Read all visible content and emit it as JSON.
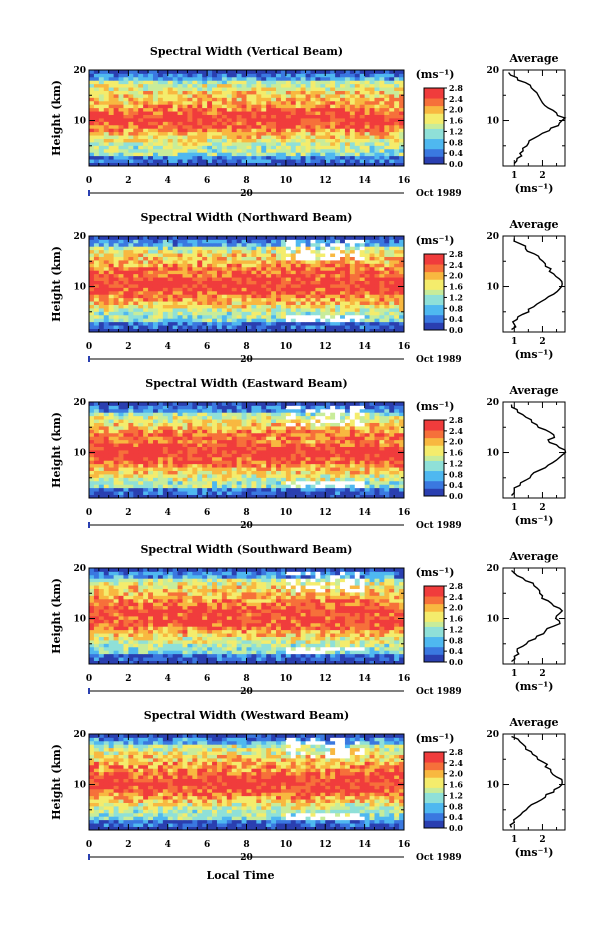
{
  "figure": {
    "xlabel": "Local Time",
    "date_label": "Oct 1989",
    "day_label": "20",
    "colorbar_unit": "(ms⁻¹)",
    "avg_unit": "(ms⁻¹)",
    "avg_title": "Average",
    "ylabel": "Height (km)"
  },
  "chart_data": [
    {
      "type": "heatmap",
      "title": "Spectral Width (Vertical Beam)",
      "ylabel": "Height (km)",
      "xlim": [
        0,
        16
      ],
      "ylim": [
        1,
        20
      ],
      "xticks": [
        "0",
        "2",
        "4",
        "6",
        "8",
        "10",
        "12",
        "14",
        "16"
      ],
      "yticks": [
        "10",
        "20"
      ],
      "colorbar": {
        "label": "(ms⁻¹)",
        "ticks": [
          "2.8",
          "2.4",
          "2.0",
          "1.6",
          "1.2",
          "0.8",
          "0.4",
          "0.0"
        ],
        "range": [
          0,
          2.8
        ]
      },
      "average_profile": {
        "title": "Average",
        "xlabel": "(ms⁻¹)",
        "xticks": [
          "1",
          "2"
        ],
        "yticks": [
          "10",
          "20"
        ],
        "xlim": [
          0.6,
          2.8
        ],
        "height": [
          1.5,
          2.5,
          3.5,
          4.5,
          5.5,
          6.5,
          7.5,
          8.5,
          9.5,
          10.5,
          11.5,
          12.5,
          13.5,
          14.5,
          15.5,
          16.5,
          17.5,
          18.5,
          19.5
        ],
        "width": [
          1.0,
          1.1,
          1.2,
          1.3,
          1.5,
          1.7,
          2.0,
          2.3,
          2.6,
          2.8,
          2.5,
          2.2,
          2.0,
          1.9,
          1.8,
          1.6,
          1.4,
          1.1,
          0.8
        ]
      }
    },
    {
      "type": "heatmap",
      "title": "Spectral Width (Northward Beam)",
      "ylabel": "Height (km)",
      "xlim": [
        0,
        16
      ],
      "ylim": [
        1,
        20
      ],
      "xticks": [
        "0",
        "2",
        "4",
        "6",
        "8",
        "10",
        "12",
        "14",
        "16"
      ],
      "yticks": [
        "10",
        "20"
      ],
      "colorbar": {
        "label": "(ms⁻¹)",
        "ticks": [
          "2.8",
          "2.4",
          "2.0",
          "1.6",
          "1.2",
          "0.8",
          "0.4",
          "0.0"
        ],
        "range": [
          0,
          2.8
        ]
      },
      "average_profile": {
        "title": "Average",
        "xlabel": "(ms⁻¹)",
        "xticks": [
          "1",
          "2"
        ],
        "yticks": [
          "10",
          "20"
        ],
        "xlim": [
          0.6,
          2.8
        ],
        "height": [
          1.5,
          2.5,
          3.5,
          4.5,
          5.5,
          6.5,
          7.5,
          8.5,
          9.5,
          10.5,
          11.5,
          12.5,
          13.5,
          14.5,
          15.5,
          16.5,
          17.5,
          18.5,
          19.5
        ],
        "width": [
          0.9,
          1.0,
          1.1,
          1.3,
          1.5,
          1.8,
          2.1,
          2.4,
          2.6,
          2.7,
          2.6,
          2.4,
          2.3,
          2.1,
          1.9,
          1.7,
          1.4,
          1.2,
          1.0
        ]
      }
    },
    {
      "type": "heatmap",
      "title": "Spectral Width (Eastward Beam)",
      "ylabel": "Height (km)",
      "xlim": [
        0,
        16
      ],
      "ylim": [
        1,
        20
      ],
      "xticks": [
        "0",
        "2",
        "4",
        "6",
        "8",
        "10",
        "12",
        "14",
        "16"
      ],
      "yticks": [
        "10",
        "20"
      ],
      "colorbar": {
        "label": "(ms⁻¹)",
        "ticks": [
          "2.8",
          "2.4",
          "2.0",
          "1.6",
          "1.2",
          "0.8",
          "0.4",
          "0.0"
        ],
        "range": [
          0,
          2.8
        ]
      },
      "average_profile": {
        "title": "Average",
        "xlabel": "(ms⁻¹)",
        "xticks": [
          "1",
          "2"
        ],
        "yticks": [
          "10",
          "20"
        ],
        "xlim": [
          0.6,
          2.8
        ],
        "height": [
          1.5,
          2.5,
          3.5,
          4.5,
          5.5,
          6.5,
          7.5,
          8.5,
          9.5,
          10.5,
          11.5,
          12.5,
          13.5,
          14.5,
          15.5,
          16.5,
          17.5,
          18.5,
          19.5
        ],
        "width": [
          0.9,
          1.0,
          1.2,
          1.4,
          1.6,
          1.9,
          2.2,
          2.5,
          2.7,
          2.8,
          2.5,
          2.2,
          2.4,
          2.1,
          1.8,
          1.6,
          1.3,
          1.1,
          0.9
        ]
      }
    },
    {
      "type": "heatmap",
      "title": "Spectral Width (Southward Beam)",
      "ylabel": "Height (km)",
      "xlim": [
        0,
        16
      ],
      "ylim": [
        1,
        20
      ],
      "xticks": [
        "0",
        "2",
        "4",
        "6",
        "8",
        "10",
        "12",
        "14",
        "16"
      ],
      "yticks": [
        "10",
        "20"
      ],
      "colorbar": {
        "label": "(ms⁻¹)",
        "ticks": [
          "2.8",
          "2.4",
          "2.0",
          "1.6",
          "1.2",
          "0.8",
          "0.4",
          "0.0"
        ],
        "range": [
          0,
          2.8
        ]
      },
      "average_profile": {
        "title": "Average",
        "xlabel": "(ms⁻¹)",
        "xticks": [
          "1",
          "2"
        ],
        "yticks": [
          "10",
          "20"
        ],
        "xlim": [
          0.6,
          2.8
        ],
        "height": [
          1.5,
          2.5,
          3.5,
          4.5,
          5.5,
          6.5,
          7.5,
          8.5,
          9.5,
          10.5,
          11.5,
          12.5,
          13.5,
          14.5,
          15.5,
          16.5,
          17.5,
          18.5,
          19.5
        ],
        "width": [
          0.9,
          1.0,
          1.1,
          1.3,
          1.5,
          1.8,
          2.1,
          2.4,
          2.6,
          2.5,
          2.7,
          2.4,
          2.2,
          2.0,
          1.9,
          1.7,
          1.4,
          1.1,
          0.9
        ]
      }
    },
    {
      "type": "heatmap",
      "title": "Spectral Width (Westward Beam)",
      "ylabel": "Height (km)",
      "xlim": [
        0,
        16
      ],
      "ylim": [
        1,
        20
      ],
      "xticks": [
        "0",
        "2",
        "4",
        "6",
        "8",
        "10",
        "12",
        "14",
        "16"
      ],
      "yticks": [
        "10",
        "20"
      ],
      "colorbar": {
        "label": "(ms⁻¹)",
        "ticks": [
          "2.8",
          "2.4",
          "2.0",
          "1.6",
          "1.2",
          "0.8",
          "0.4",
          "0.0"
        ],
        "range": [
          0,
          2.8
        ]
      },
      "average_profile": {
        "title": "Average",
        "xlabel": "(ms⁻¹)",
        "xticks": [
          "1",
          "2"
        ],
        "yticks": [
          "10",
          "20"
        ],
        "xlim": [
          0.6,
          2.8
        ],
        "height": [
          1.5,
          2.5,
          3.5,
          4.5,
          5.5,
          6.5,
          7.5,
          8.5,
          9.5,
          10.5,
          11.5,
          12.5,
          13.5,
          14.5,
          15.5,
          16.5,
          17.5,
          18.5,
          19.5
        ],
        "width": [
          0.9,
          1.0,
          1.1,
          1.3,
          1.5,
          1.8,
          2.1,
          2.4,
          2.6,
          2.7,
          2.5,
          2.3,
          2.1,
          2.0,
          1.8,
          1.6,
          1.4,
          1.2,
          0.9
        ]
      }
    }
  ]
}
